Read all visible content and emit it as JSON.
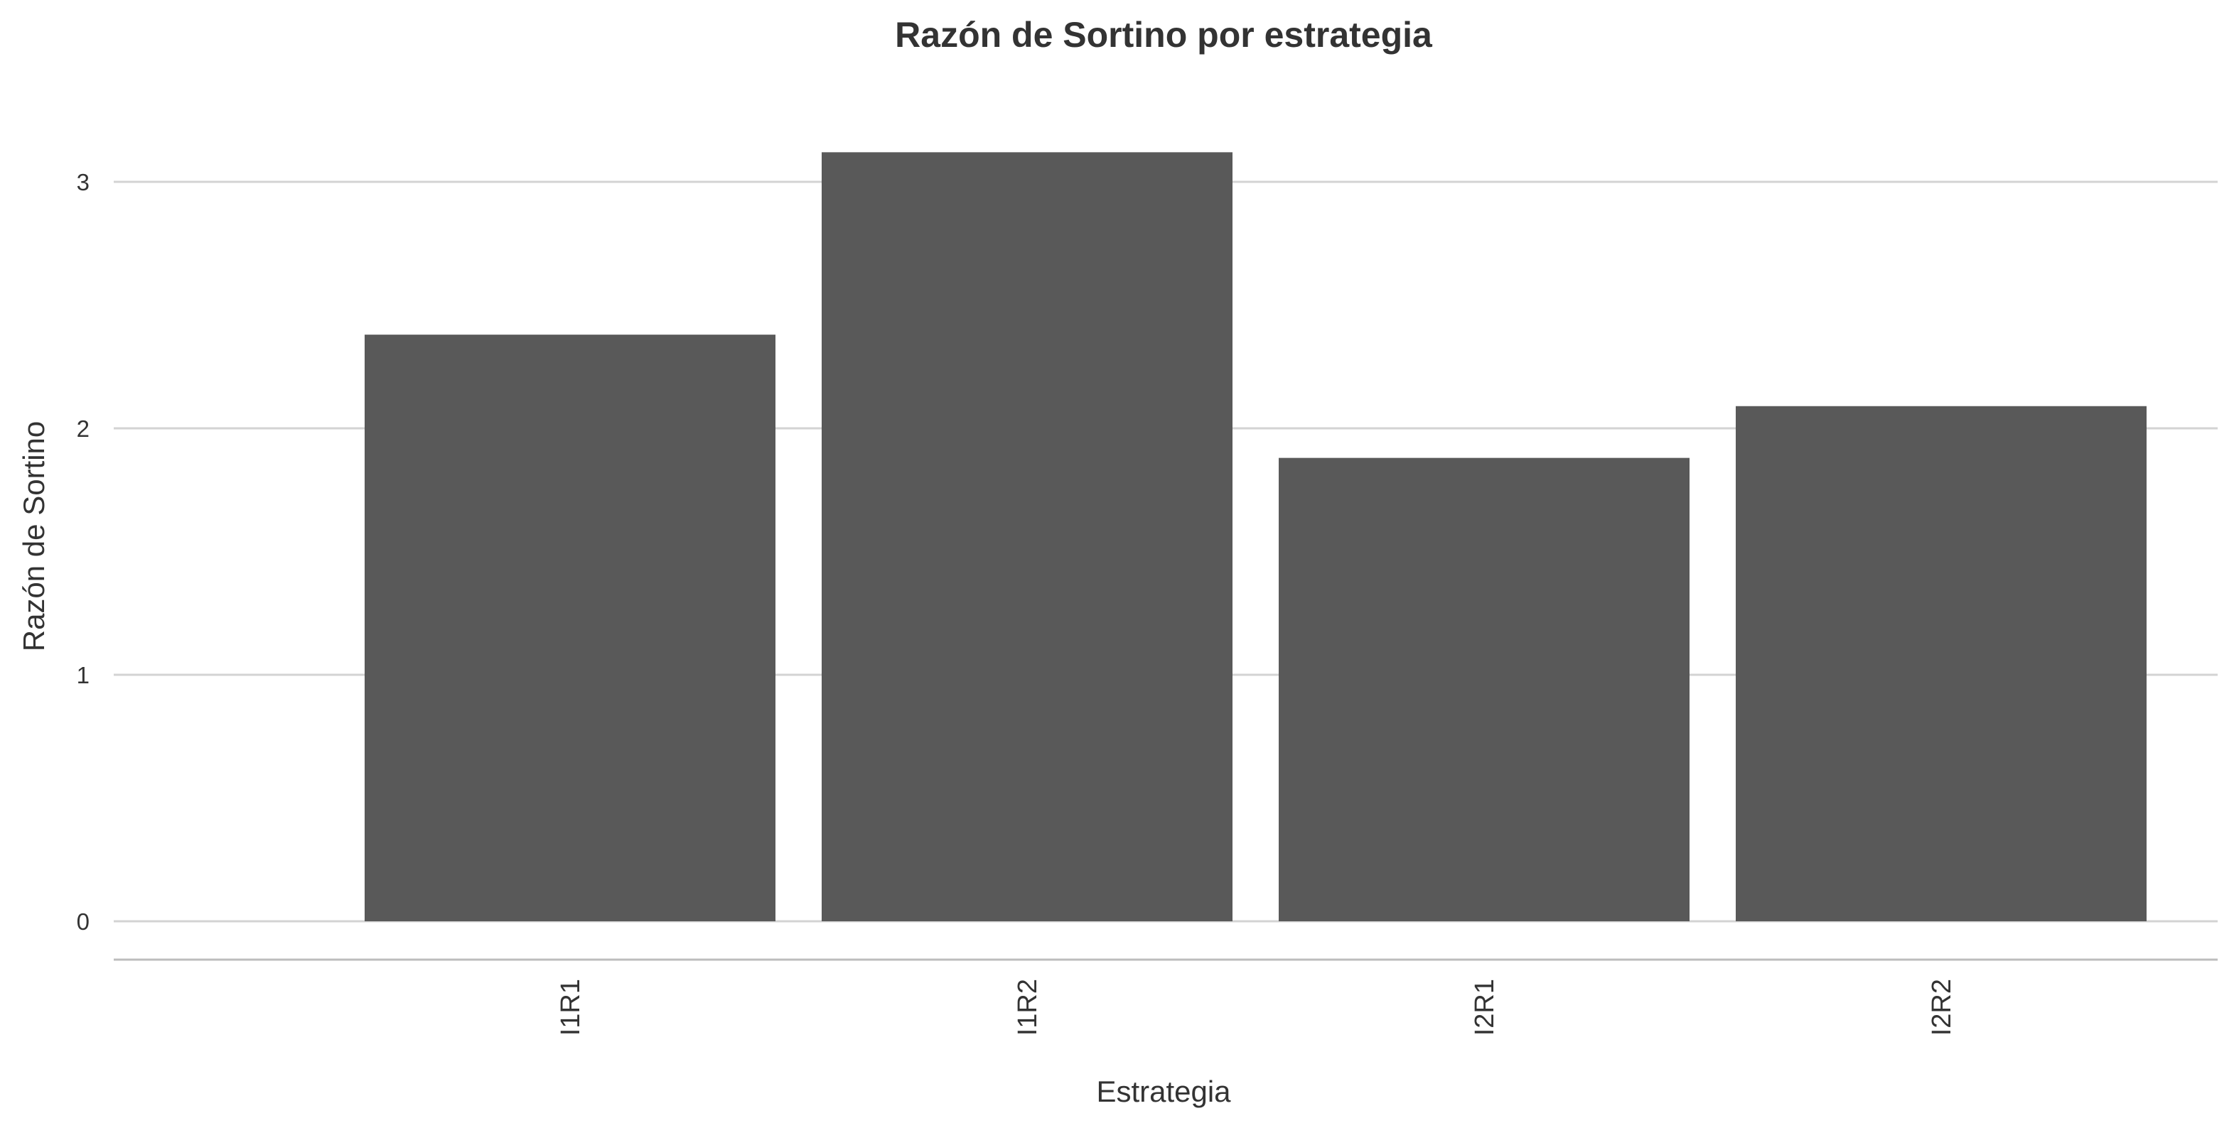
{
  "chart_data": {
    "type": "bar",
    "title": "Razón de Sortino por estrategia",
    "xlabel": "Estrategia",
    "ylabel": "Razón de Sortino",
    "categories": [
      "I1R1",
      "I1R2",
      "I2R1",
      "I2R2"
    ],
    "values": [
      2.38,
      3.12,
      1.88,
      2.09
    ],
    "ylim": [
      -0.16,
      3.3
    ],
    "yticks": [
      0,
      1,
      2,
      3
    ],
    "grid": true,
    "legend": "none",
    "bar_color": "#595959"
  }
}
